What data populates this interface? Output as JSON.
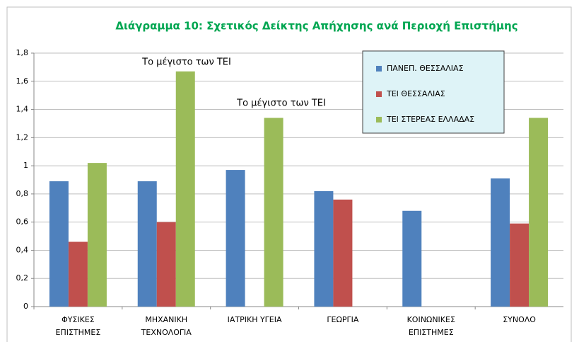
{
  "chart_data": {
    "type": "bar",
    "title": "Διάγραμμα 10: Σχετικός Δείκτης Απήχησης ανά Περιοχή Επιστήμης",
    "categories": [
      "ΦΥΣΙΚΕΣ\nΕΠΙΣΤΗΜΕΣ",
      "ΜΗΧΑΝΙΚΗ\nΤΕΧΝΟΛΟΓΙΑ",
      "ΙΑΤΡΙΚΗ ΥΓΕΙΑ",
      "ΓΕΩΡΓΙΑ",
      "ΚΟΙΝΩΝΙΚΕΣ\nΕΠΙΣΤΗΜΕΣ",
      "ΣΥΝΟΛΟ"
    ],
    "series": [
      {
        "name": "ΠΑΝΕΠ. ΘΕΣΣΑΛΙΑΣ",
        "color": "#4f81bd",
        "values": [
          0.89,
          0.89,
          0.97,
          0.82,
          0.68,
          0.91
        ]
      },
      {
        "name": "ΤΕΙ ΘΕΣΣΑΛΙΑΣ",
        "color": "#c0504d",
        "values": [
          0.46,
          0.6,
          null,
          0.76,
          null,
          0.59
        ]
      },
      {
        "name": "ΤΕΙ ΣΤΕΡΕΑΣ ΕΛΛΑΔΑΣ",
        "color": "#9bbb59",
        "values": [
          1.02,
          1.67,
          1.34,
          null,
          null,
          1.34
        ]
      }
    ],
    "annotations": [
      "Το μέγιστο των ΤΕΙ",
      "Το μέγιστο των ΤΕΙ"
    ],
    "ylim": [
      0,
      1.8
    ],
    "yticks": [
      0,
      {
        "value": 0.2,
        "label": "0,2"
      },
      {
        "value": 0.4,
        "label": "0,4"
      },
      {
        "value": 0.6,
        "label": "0,6"
      },
      {
        "value": 0.8,
        "label": "0,8"
      },
      1,
      {
        "value": 1.2,
        "label": "1,2"
      },
      {
        "value": 1.4,
        "label": "1,4"
      },
      {
        "value": 1.6,
        "label": "1,6"
      },
      {
        "value": 1.8,
        "label": "1,8"
      }
    ],
    "grid": true
  }
}
